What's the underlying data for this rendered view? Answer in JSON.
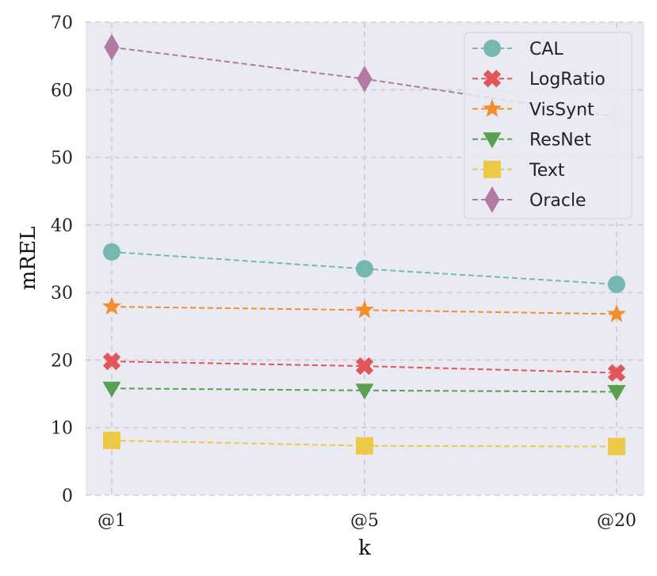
{
  "chart_data": {
    "type": "line",
    "categories": [
      "@1",
      "@5",
      "@20"
    ],
    "xlabel": "k",
    "ylabel": "mREL",
    "ylim": [
      0,
      70
    ],
    "yticks": [
      0,
      10,
      20,
      30,
      40,
      50,
      60,
      70
    ],
    "grid": true,
    "legend_position": "top-right",
    "series": [
      {
        "name": "CAL",
        "values": [
          36.0,
          33.5,
          31.2
        ],
        "color": "#76b7b2",
        "marker": "circle"
      },
      {
        "name": "LogRatio",
        "values": [
          19.8,
          19.1,
          18.1
        ],
        "color": "#e15759",
        "marker": "x"
      },
      {
        "name": "VisSynt",
        "values": [
          27.9,
          27.4,
          26.8
        ],
        "color": "#f28e2b",
        "marker": "star"
      },
      {
        "name": "ResNet",
        "values": [
          15.8,
          15.5,
          15.3
        ],
        "color": "#59a14f",
        "marker": "triangle-down"
      },
      {
        "name": "Text",
        "values": [
          8.1,
          7.3,
          7.2
        ],
        "color": "#edc948",
        "marker": "square"
      },
      {
        "name": "Oracle",
        "values": [
          66.3,
          61.6,
          56.0
        ],
        "color": "#b07aa1",
        "marker": "diamond"
      }
    ]
  }
}
